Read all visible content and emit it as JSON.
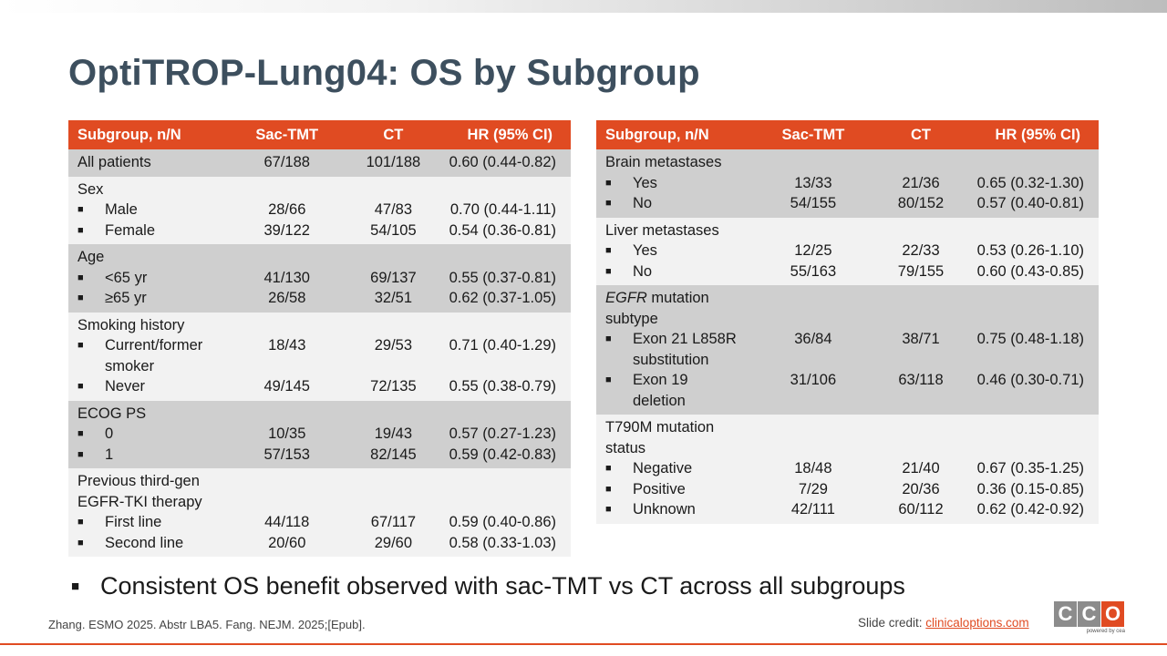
{
  "slide": {
    "title": "OptiTROP-Lung04: OS by Subgroup",
    "key_point": "Consistent OS benefit observed with sac-TMT vs CT across all subgroups",
    "reference": "Zhang. ESMO 2025. Abstr LBA5. Fang. NEJM. 2025;[Epub].",
    "credit_label": "Slide credit: ",
    "credit_link": "clinicaloptions.com",
    "logo": {
      "letters": [
        "C",
        "C",
        "O"
      ],
      "subtitle": "powered by cea"
    },
    "accent_color": "#e04b22",
    "title_color": "#3d4f5e"
  },
  "columns": [
    "Subgroup, n/N",
    "Sac-TMT",
    "CT",
    "HR (95% CI)"
  ],
  "left_table": {
    "groups": [
      {
        "shade": "shade",
        "label": [
          "All patients"
        ],
        "label_italic": "",
        "summary": {
          "sac": "67/188",
          "ct": "101/188",
          "hr": "0.60 (0.44-0.82)"
        },
        "rows": []
      },
      {
        "shade": "light",
        "label": [
          "Sex"
        ],
        "label_italic": "",
        "summary": null,
        "rows": [
          {
            "label": [
              "Male"
            ],
            "sac": "28/66",
            "ct": "47/83",
            "hr": "0.70 (0.44-1.11)"
          },
          {
            "label": [
              "Female"
            ],
            "sac": "39/122",
            "ct": "54/105",
            "hr": "0.54 (0.36-0.81)"
          }
        ]
      },
      {
        "shade": "shade",
        "label": [
          "Age"
        ],
        "label_italic": "",
        "summary": null,
        "rows": [
          {
            "label": [
              "<65 yr"
            ],
            "sac": "41/130",
            "ct": "69/137",
            "hr": "0.55 (0.37-0.81)"
          },
          {
            "label": [
              "≥65 yr"
            ],
            "sac": "26/58",
            "ct": "32/51",
            "hr": "0.62 (0.37-1.05)"
          }
        ]
      },
      {
        "shade": "light",
        "label": [
          "Smoking history"
        ],
        "label_italic": "",
        "summary": null,
        "rows": [
          {
            "label": [
              "Current/former",
              "smoker"
            ],
            "sac": "18/43",
            "ct": "29/53",
            "hr": "0.71 (0.40-1.29)"
          },
          {
            "label": [
              "Never"
            ],
            "sac": "49/145",
            "ct": "72/135",
            "hr": "0.55 (0.38-0.79)"
          }
        ]
      },
      {
        "shade": "shade",
        "label": [
          "ECOG PS"
        ],
        "label_italic": "",
        "summary": null,
        "rows": [
          {
            "label": [
              "0"
            ],
            "sac": "10/35",
            "ct": "19/43",
            "hr": "0.57 (0.27-1.23)"
          },
          {
            "label": [
              "1"
            ],
            "sac": "57/153",
            "ct": "82/145",
            "hr": "0.59 (0.42-0.83)"
          }
        ]
      },
      {
        "shade": "light",
        "label": [
          "Previous third-gen",
          "EGFR-TKI therapy"
        ],
        "label_italic": "",
        "summary": null,
        "rows": [
          {
            "label": [
              "First line"
            ],
            "sac": "44/118",
            "ct": "67/117",
            "hr": "0.59 (0.40-0.86)"
          },
          {
            "label": [
              "Second line"
            ],
            "sac": "20/60",
            "ct": "29/60",
            "hr": "0.58 (0.33-1.03)"
          }
        ]
      }
    ]
  },
  "right_table": {
    "groups": [
      {
        "shade": "shade",
        "label": [
          "Brain metastases"
        ],
        "label_italic": "",
        "summary": null,
        "rows": [
          {
            "label": [
              "Yes"
            ],
            "sac": "13/33",
            "ct": "21/36",
            "hr": "0.65 (0.32-1.30)"
          },
          {
            "label": [
              "No"
            ],
            "sac": "54/155",
            "ct": "80/152",
            "hr": "0.57 (0.40-0.81)"
          }
        ]
      },
      {
        "shade": "light",
        "label": [
          "Liver metastases"
        ],
        "label_italic": "",
        "summary": null,
        "rows": [
          {
            "label": [
              "Yes"
            ],
            "sac": "12/25",
            "ct": "22/33",
            "hr": "0.53 (0.26-1.10)"
          },
          {
            "label": [
              "No"
            ],
            "sac": "55/163",
            "ct": "79/155",
            "hr": "0.60 (0.43-0.85)"
          }
        ]
      },
      {
        "shade": "shade",
        "label": [
          " mutation",
          "subtype"
        ],
        "label_italic": "EGFR",
        "summary": null,
        "rows": [
          {
            "label": [
              "Exon 21 L858R",
              "substitution"
            ],
            "sac": "36/84",
            "ct": "38/71",
            "hr": "0.75 (0.48-1.18)"
          },
          {
            "label": [
              "Exon 19",
              "deletion"
            ],
            "sac": "31/106",
            "ct": "63/118",
            "hr": "0.46 (0.30-0.71)"
          }
        ]
      },
      {
        "shade": "light",
        "label": [
          "T790M mutation",
          "status"
        ],
        "label_italic": "",
        "summary": null,
        "rows": [
          {
            "label": [
              "Negative"
            ],
            "sac": "18/48",
            "ct": "21/40",
            "hr": "0.67 (0.35-1.25)"
          },
          {
            "label": [
              "Positive"
            ],
            "sac": "7/29",
            "ct": "20/36",
            "hr": "0.36 (0.15-0.85)"
          },
          {
            "label": [
              "Unknown"
            ],
            "sac": "42/111",
            "ct": "60/112",
            "hr": "0.62 (0.42-0.92)"
          }
        ]
      }
    ]
  }
}
